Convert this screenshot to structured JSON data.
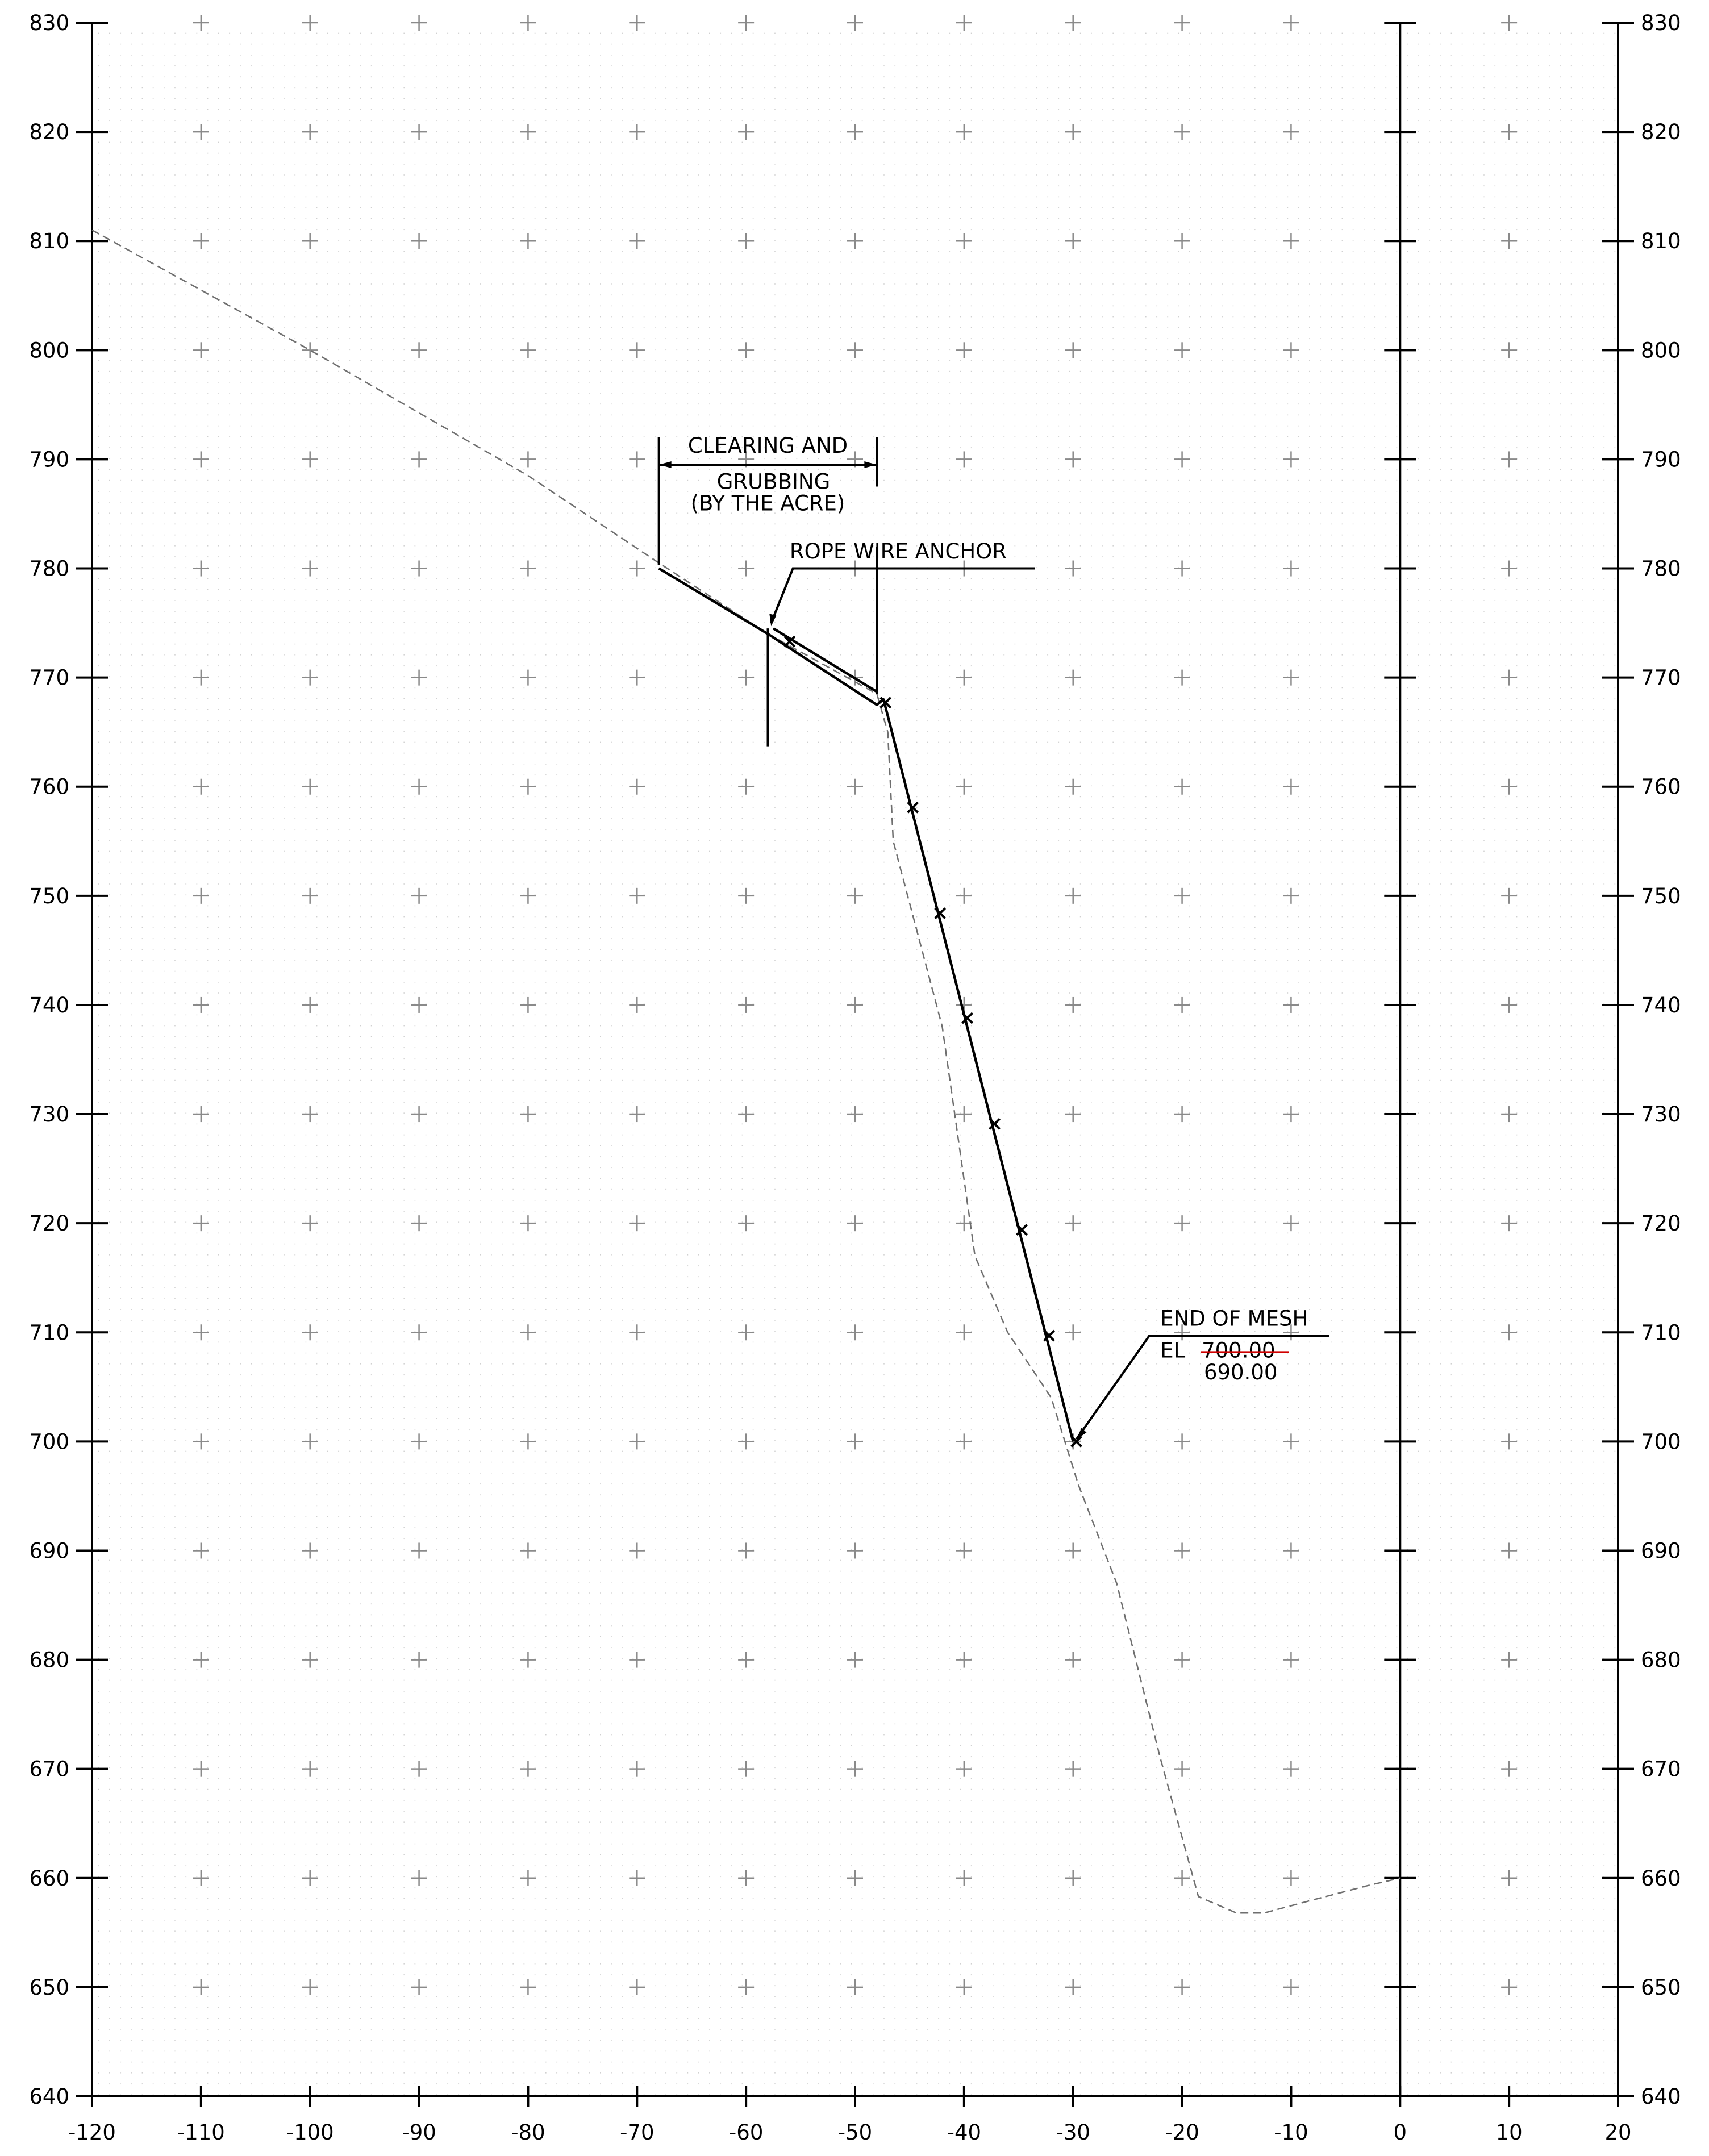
{
  "chart_data": {
    "type": "line",
    "title": "",
    "xlabel": "",
    "ylabel": "",
    "xlim": [
      -120,
      20
    ],
    "ylim": [
      640,
      830
    ],
    "x_ticks": [
      -120,
      -110,
      -100,
      -90,
      -80,
      -70,
      -60,
      -50,
      -40,
      -30,
      -20,
      -10,
      0,
      10,
      20
    ],
    "x_tick_labels": [
      "-120",
      "-110",
      "-100",
      "-90",
      "-80",
      "-70",
      "-60",
      "-50",
      "-40",
      "-30",
      "-20",
      "-10",
      "0",
      "10",
      "20"
    ],
    "y_ticks": [
      640,
      650,
      660,
      670,
      680,
      690,
      700,
      710,
      720,
      730,
      740,
      750,
      760,
      770,
      780,
      790,
      800,
      810,
      820,
      830
    ],
    "y_tick_labels": [
      "640",
      "650",
      "660",
      "670",
      "680",
      "690",
      "700",
      "710",
      "720",
      "730",
      "740",
      "750",
      "760",
      "770",
      "780",
      "790",
      "800",
      "810",
      "820",
      "830"
    ],
    "grid": true,
    "series": [
      {
        "style": "dashed",
        "points": [
          [
            -120,
            811
          ],
          [
            -100,
            800
          ],
          [
            -80,
            788.5
          ],
          [
            -68,
            780.5
          ],
          [
            -58,
            774
          ],
          [
            -48,
            768.5
          ],
          [
            -47,
            765
          ],
          [
            -46.5,
            755
          ],
          [
            -42,
            738
          ],
          [
            -39,
            717
          ],
          [
            -36,
            710
          ],
          [
            -32,
            704
          ],
          [
            -29.5,
            696
          ],
          [
            -26,
            687
          ],
          [
            -22,
            671
          ],
          [
            -18.5,
            658.3
          ],
          [
            -15,
            656.8
          ],
          [
            -12.5,
            656.8
          ],
          [
            -8,
            658
          ],
          [
            -3,
            659.3
          ],
          [
            0,
            660
          ]
        ],
        "color": "#6f6f6f"
      },
      {
        "style": "solid",
        "points": [
          [
            -68,
            780
          ],
          [
            -58,
            774
          ],
          [
            -48,
            767.5
          ],
          [
            -47.4,
            768
          ],
          [
            -47,
            766.5
          ],
          [
            -30,
            700
          ]
        ],
        "color": "#000000"
      },
      {
        "style": "solid-offset",
        "points": [
          [
            -57.5,
            774.5
          ],
          [
            -48,
            768.7
          ]
        ],
        "color": "#000000"
      }
    ],
    "mesh_markers": [
      [
        -56,
        773.3
      ],
      [
        -47.2,
        767.7
      ],
      [
        -44.7,
        758.1
      ],
      [
        -42.2,
        748.4
      ],
      [
        -39.7,
        738.8
      ],
      [
        -37.2,
        729.1
      ],
      [
        -34.7,
        719.4
      ],
      [
        -32.2,
        709.7
      ],
      [
        -29.7,
        700
      ]
    ],
    "vertical_lines": [
      0
    ],
    "annotations": {
      "clearing_line1": "CLEARING AND",
      "clearing_line2": "GRUBBING",
      "clearing_line3": "(BY THE ACRE)",
      "rope_anchor": "ROPE WIRE ANCHOR",
      "end_of_mesh": "END OF MESH",
      "el_prefix": "EL",
      "el_old": "700.00",
      "el_new": "690.00",
      "el_new_color": "#d00000"
    }
  }
}
